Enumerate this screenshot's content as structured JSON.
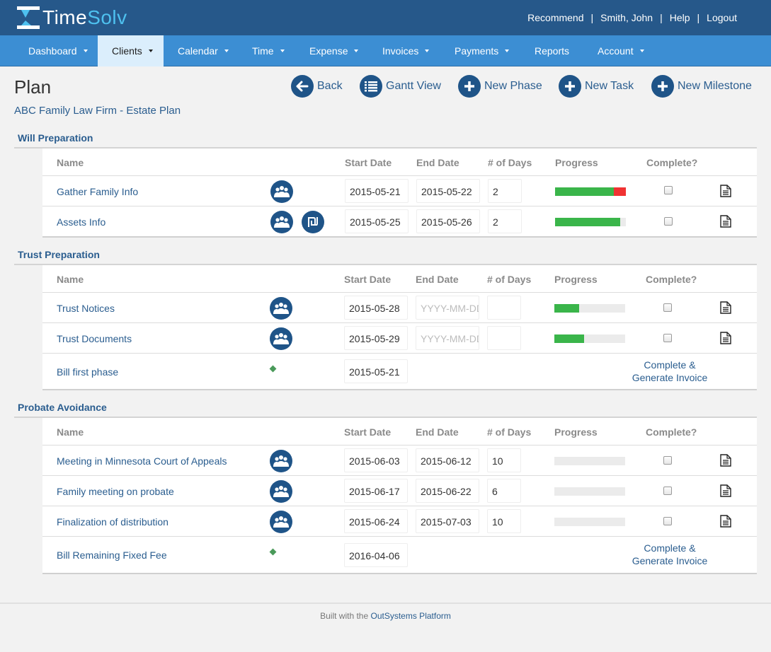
{
  "app": {
    "logo_time": "Time",
    "logo_solv": "Solv",
    "accent": "#26588a",
    "nav_color": "#3c8ed3"
  },
  "userlinks": {
    "recommend": "Recommend",
    "user": "Smith, John",
    "help": "Help",
    "logout": "Logout",
    "separator": "|"
  },
  "nav": {
    "dashboard": "Dashboard",
    "clients": "Clients",
    "calendar": "Calendar",
    "time": "Time",
    "expense": "Expense",
    "invoices": "Invoices",
    "payments": "Payments",
    "reports": "Reports",
    "account": "Account"
  },
  "page": {
    "title": "Plan",
    "subtitle": "ABC Family Law Firm - Estate Plan"
  },
  "actions": {
    "back": "Back",
    "gantt": "Gantt View",
    "new_phase": "New Phase",
    "new_task": "New Task",
    "new_milestone": "New Milestone"
  },
  "columns": {
    "name": "Name",
    "start": "Start Date",
    "end": "End Date",
    "days": "# of Days",
    "progress": "Progress",
    "complete": "Complete?"
  },
  "date_placeholder": "YYYY-MM-DD",
  "milestone_action": {
    "line1": "Complete &",
    "line2": "Generate Invoice"
  },
  "sections": [
    {
      "title": "Will Preparation",
      "rows": [
        {
          "name": "Gather Family Info",
          "start": "2015-05-21",
          "end": "2015-05-22",
          "days": "2",
          "progress": 0.83,
          "overrun": 0.17,
          "extra_icon": false
        },
        {
          "name": "Assets Info",
          "start": "2015-05-25",
          "end": "2015-05-26",
          "days": "2",
          "progress": 0.92,
          "overrun": 0,
          "extra_icon": true
        }
      ]
    },
    {
      "title": "Trust Preparation",
      "rows": [
        {
          "name": "Trust Notices",
          "start": "2015-05-28",
          "end": "",
          "days": "",
          "progress": 0.35,
          "overrun": 0
        },
        {
          "name": "Trust Documents",
          "start": "2015-05-29",
          "end": "",
          "days": "",
          "progress": 0.42,
          "overrun": 0
        }
      ],
      "milestone": {
        "name": "Bill first phase",
        "date": "2015-05-21"
      }
    },
    {
      "title": "Probate Avoidance",
      "rows": [
        {
          "name": "Meeting in Minnesota Court of Appeals",
          "start": "2015-06-03",
          "end": "2015-06-12",
          "days": "10",
          "progress": 0,
          "overrun": 0
        },
        {
          "name": "Family meeting on probate",
          "start": "2015-06-17",
          "end": "2015-06-22",
          "days": "6",
          "progress": 0,
          "overrun": 0
        },
        {
          "name": "Finalization of distribution",
          "start": "2015-06-24",
          "end": "2015-07-03",
          "days": "10",
          "progress": 0,
          "overrun": 0
        }
      ],
      "milestone": {
        "name": "Bill Remaining Fixed Fee",
        "date": "2016-04-06"
      }
    }
  ],
  "footer": {
    "prefix": "Built with the ",
    "link": "OutSystems Platform"
  }
}
